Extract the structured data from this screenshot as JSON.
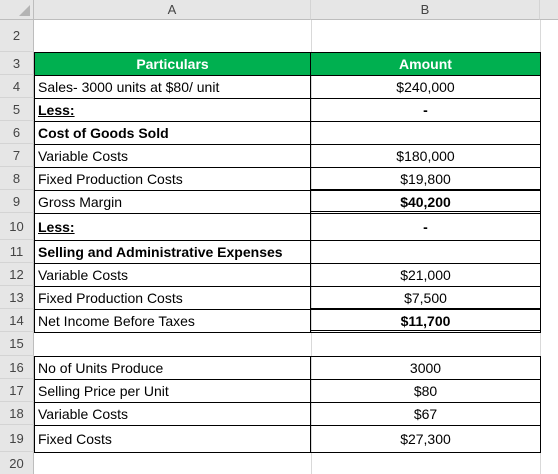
{
  "columns": [
    "A",
    "B"
  ],
  "rows": [
    {
      "num": "2",
      "a": "",
      "b": ""
    },
    {
      "num": "3",
      "a": "Particulars",
      "b": "Amount"
    },
    {
      "num": "4",
      "a": "Sales- 3000 units at $80/ unit",
      "b": "$240,000"
    },
    {
      "num": "5",
      "a": "Less:",
      "b": "-"
    },
    {
      "num": "6",
      "a": "Cost of Goods Sold",
      "b": ""
    },
    {
      "num": "7",
      "a": "Variable Costs",
      "b": "$180,000"
    },
    {
      "num": "8",
      "a": "Fixed Production Costs",
      "b": "$19,800"
    },
    {
      "num": "9",
      "a": "Gross Margin",
      "b": "$40,200"
    },
    {
      "num": "10",
      "a": "Less:",
      "b": "-"
    },
    {
      "num": "11",
      "a": "Selling and Administrative Expenses",
      "b": ""
    },
    {
      "num": "12",
      "a": "Variable Costs",
      "b": "$21,000"
    },
    {
      "num": "13",
      "a": "Fixed Production Costs",
      "b": "$7,500"
    },
    {
      "num": "14",
      "a": "Net Income Before Taxes",
      "b": "$11,700"
    },
    {
      "num": "15",
      "a": "",
      "b": ""
    },
    {
      "num": "16",
      "a": "No of Units Produce",
      "b": "3000"
    },
    {
      "num": "17",
      "a": "Selling Price per Unit",
      "b": "$80"
    },
    {
      "num": "18",
      "a": "Variable Costs",
      "b": "$67"
    },
    {
      "num": "19",
      "a": "Fixed Costs",
      "b": "$27,300"
    },
    {
      "num": "20",
      "a": "",
      "b": ""
    }
  ],
  "colors": {
    "header_fill": "#00b050",
    "header_text": "#ffffff"
  }
}
